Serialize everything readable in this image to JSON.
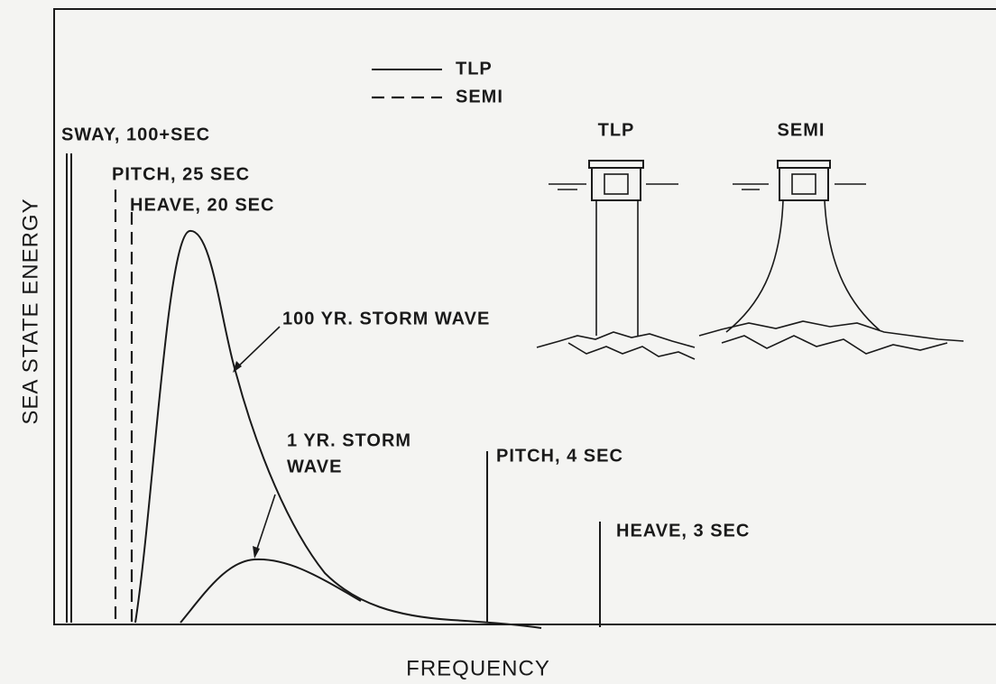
{
  "axes": {
    "x_label": "FREQUENCY",
    "y_label": "SEA STATE ENERGY"
  },
  "legend": [
    "TLP",
    "SEMI"
  ],
  "annotations": {
    "sway": "SWAY, 100+SEC",
    "pitch_semi": "PITCH, 25 SEC",
    "heave_semi": "HEAVE, 20 SEC",
    "storm_100yr": "100 YR. STORM WAVE",
    "storm_1yr": [
      "1 YR. STORM",
      "WAVE"
    ],
    "pitch_tlp": "PITCH, 4 SEC",
    "heave_tlp": "HEAVE, 3 SEC"
  },
  "platforms": [
    "TLP",
    "SEMI"
  ]
}
